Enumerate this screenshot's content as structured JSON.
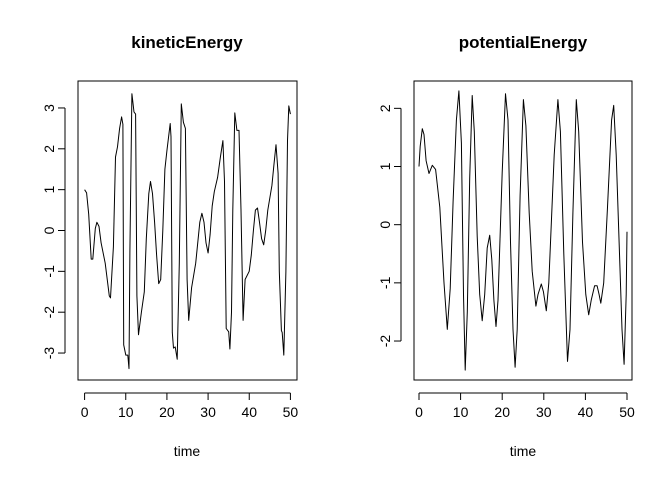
{
  "chart_data": [
    {
      "type": "line",
      "title": "kineticEnergy",
      "xlabel": "time",
      "ylabel": "",
      "xlim": [
        -1.6,
        51.6
      ],
      "ylim": [
        -3.66,
        3.66
      ],
      "xticks": [
        0,
        10,
        20,
        30,
        40,
        50
      ],
      "yticks": [
        -3,
        -2,
        -1,
        0,
        1,
        2,
        3
      ],
      "grid": false,
      "series": [
        {
          "color": "#000000",
          "points": [
            [
              0,
              1.0
            ],
            [
              0.5,
              0.92
            ],
            [
              1,
              0.4
            ],
            [
              1.6,
              -0.7
            ],
            [
              2,
              -0.7
            ],
            [
              2.6,
              0.05
            ],
            [
              3,
              0.2
            ],
            [
              3.5,
              0.1
            ],
            [
              4,
              -0.3
            ],
            [
              5,
              -0.8
            ],
            [
              6,
              -1.6
            ],
            [
              6.3,
              -1.65
            ],
            [
              7,
              -0.4
            ],
            [
              7.5,
              1.8
            ],
            [
              8,
              2.05
            ],
            [
              8.5,
              2.5
            ],
            [
              9,
              2.78
            ],
            [
              9.3,
              2.6
            ],
            [
              9.5,
              -2.8
            ],
            [
              10,
              -3.05
            ],
            [
              10.5,
              -3.05
            ],
            [
              10.8,
              -3.38
            ],
            [
              11,
              -0.5
            ],
            [
              11.5,
              3.35
            ],
            [
              12,
              2.9
            ],
            [
              12.4,
              2.85
            ],
            [
              12.7,
              -1.6
            ],
            [
              13.1,
              -2.55
            ],
            [
              13.8,
              -2.0
            ],
            [
              14.5,
              -1.5
            ],
            [
              15,
              -0.2
            ],
            [
              15.6,
              0.9
            ],
            [
              16,
              1.2
            ],
            [
              16.5,
              0.9
            ],
            [
              17,
              0.2
            ],
            [
              17.5,
              -0.6
            ],
            [
              18,
              -1.3
            ],
            [
              18.5,
              -1.2
            ],
            [
              19,
              0.0
            ],
            [
              19.5,
              1.5
            ],
            [
              20,
              1.95
            ],
            [
              20.8,
              2.62
            ],
            [
              21,
              2.3
            ],
            [
              21.3,
              -2.5
            ],
            [
              21.6,
              -2.88
            ],
            [
              22,
              -2.85
            ],
            [
              22.5,
              -3.15
            ],
            [
              23,
              -0.8
            ],
            [
              23.5,
              3.1
            ],
            [
              24,
              2.65
            ],
            [
              24.5,
              2.5
            ],
            [
              24.9,
              -1.2
            ],
            [
              25.3,
              -2.2
            ],
            [
              26,
              -1.4
            ],
            [
              27,
              -0.8
            ],
            [
              28,
              0.2
            ],
            [
              28.5,
              0.42
            ],
            [
              29,
              0.2
            ],
            [
              29.5,
              -0.3
            ],
            [
              30,
              -0.55
            ],
            [
              30.5,
              -0.1
            ],
            [
              31,
              0.6
            ],
            [
              31.5,
              0.95
            ],
            [
              32.3,
              1.3
            ],
            [
              33,
              1.8
            ],
            [
              33.6,
              2.2
            ],
            [
              34,
              1.2
            ],
            [
              34.4,
              -2.4
            ],
            [
              35,
              -2.48
            ],
            [
              35.3,
              -2.9
            ],
            [
              35.7,
              -2.0
            ],
            [
              36,
              0.5
            ],
            [
              36.5,
              2.88
            ],
            [
              37,
              2.45
            ],
            [
              37.5,
              2.45
            ],
            [
              38,
              0.5
            ],
            [
              38.5,
              -2.2
            ],
            [
              39,
              -1.2
            ],
            [
              40,
              -1.0
            ],
            [
              40.5,
              -0.6
            ],
            [
              41,
              0.0
            ],
            [
              41.5,
              0.5
            ],
            [
              42,
              0.55
            ],
            [
              42.5,
              0.2
            ],
            [
              43,
              -0.2
            ],
            [
              43.5,
              -0.35
            ],
            [
              44,
              0.0
            ],
            [
              44.5,
              0.5
            ],
            [
              45.5,
              1.1
            ],
            [
              46,
              1.6
            ],
            [
              46.5,
              2.1
            ],
            [
              47,
              1.4
            ],
            [
              47.3,
              -1.0
            ],
            [
              47.8,
              -2.45
            ],
            [
              48,
              -2.5
            ],
            [
              48.4,
              -3.05
            ],
            [
              48.9,
              -1.0
            ],
            [
              49.3,
              2.2
            ],
            [
              49.6,
              3.05
            ],
            [
              50,
              2.85
            ]
          ]
        }
      ]
    },
    {
      "type": "line",
      "title": "potentialEnergy",
      "xlabel": "time",
      "ylabel": "",
      "xlim": [
        -1.2,
        51.2
      ],
      "ylim": [
        -2.67,
        2.47
      ],
      "xticks": [
        0,
        10,
        20,
        30,
        40,
        50
      ],
      "yticks": [
        -2,
        -1,
        0,
        1,
        2
      ],
      "grid": false,
      "series": [
        {
          "color": "#000000",
          "points": [
            [
              0,
              1.0
            ],
            [
              0.3,
              1.35
            ],
            [
              0.8,
              1.65
            ],
            [
              1.2,
              1.55
            ],
            [
              1.7,
              1.1
            ],
            [
              2.4,
              0.88
            ],
            [
              3.2,
              1.02
            ],
            [
              4,
              0.95
            ],
            [
              5,
              0.3
            ],
            [
              6,
              -1.0
            ],
            [
              6.8,
              -1.8
            ],
            [
              7.5,
              -1.1
            ],
            [
              8.2,
              0.4
            ],
            [
              9,
              1.8
            ],
            [
              9.6,
              2.3
            ],
            [
              10.2,
              1.4
            ],
            [
              10.7,
              -1.2
            ],
            [
              11.1,
              -2.5
            ],
            [
              11.6,
              -1.5
            ],
            [
              12.2,
              0.8
            ],
            [
              12.8,
              2.22
            ],
            [
              13.3,
              1.6
            ],
            [
              14,
              -0.2
            ],
            [
              14.6,
              -1.2
            ],
            [
              15.2,
              -1.65
            ],
            [
              15.8,
              -1.2
            ],
            [
              16.4,
              -0.4
            ],
            [
              17,
              -0.18
            ],
            [
              17.5,
              -0.6
            ],
            [
              18,
              -1.3
            ],
            [
              18.5,
              -1.75
            ],
            [
              19,
              -1.3
            ],
            [
              20,
              0.9
            ],
            [
              20.8,
              2.25
            ],
            [
              21.4,
              1.8
            ],
            [
              22,
              -0.3
            ],
            [
              22.6,
              -1.8
            ],
            [
              23.1,
              -2.45
            ],
            [
              23.6,
              -1.8
            ],
            [
              24.3,
              0.5
            ],
            [
              25.1,
              2.15
            ],
            [
              25.7,
              1.7
            ],
            [
              26.5,
              0.2
            ],
            [
              27.2,
              -0.8
            ],
            [
              28.1,
              -1.4
            ],
            [
              28.6,
              -1.2
            ],
            [
              29.4,
              -1.02
            ],
            [
              29.9,
              -1.15
            ],
            [
              30.6,
              -1.48
            ],
            [
              31.2,
              -1.0
            ],
            [
              32.5,
              1.2
            ],
            [
              33.4,
              2.15
            ],
            [
              34,
              1.6
            ],
            [
              34.8,
              -0.5
            ],
            [
              35.7,
              -2.35
            ],
            [
              36.3,
              -1.8
            ],
            [
              37,
              0.2
            ],
            [
              37.8,
              2.15
            ],
            [
              38.4,
              1.6
            ],
            [
              39.3,
              -0.3
            ],
            [
              40.1,
              -1.2
            ],
            [
              40.8,
              -1.55
            ],
            [
              41.4,
              -1.3
            ],
            [
              42.2,
              -1.05
            ],
            [
              42.8,
              -1.05
            ],
            [
              43.3,
              -1.2
            ],
            [
              43.7,
              -1.35
            ],
            [
              44.4,
              -1.0
            ],
            [
              45.3,
              0.3
            ],
            [
              46.3,
              1.8
            ],
            [
              46.8,
              2.05
            ],
            [
              47.4,
              1.2
            ],
            [
              48.2,
              -0.5
            ],
            [
              48.8,
              -1.8
            ],
            [
              49.3,
              -2.4
            ],
            [
              49.8,
              -1.2
            ],
            [
              50,
              -0.12
            ]
          ]
        }
      ]
    }
  ]
}
